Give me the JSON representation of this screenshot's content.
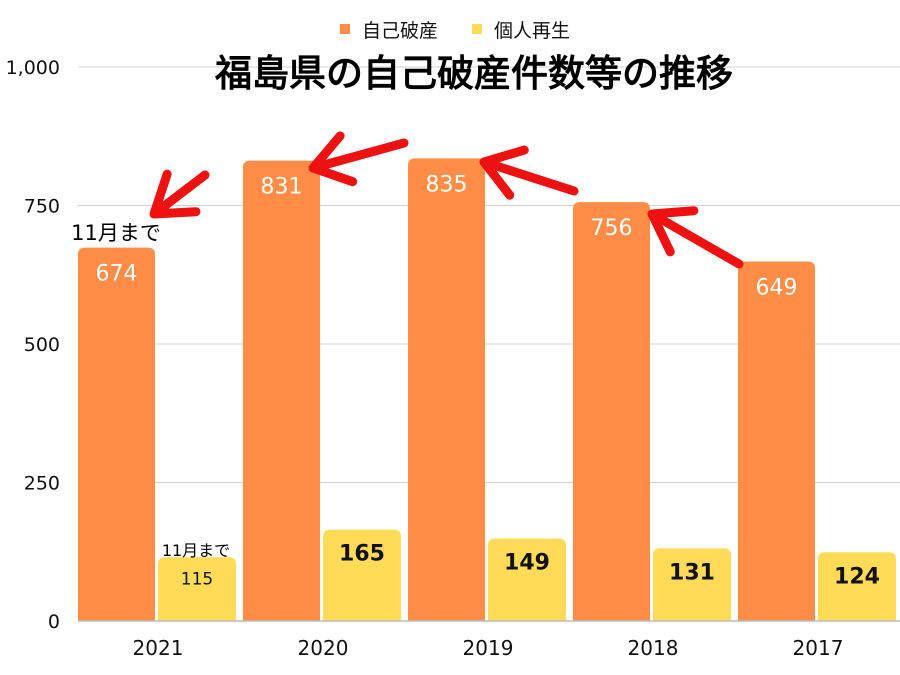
{
  "chart_data": {
    "type": "bar",
    "title": "福島県の自己破産件数等の推移",
    "categories": [
      "2021",
      "2020",
      "2019",
      "2018",
      "2017"
    ],
    "series": [
      {
        "name": "自己破産",
        "values": [
          674,
          831,
          835,
          756,
          649
        ],
        "color": "#FF8D47"
      },
      {
        "name": "個人再生",
        "values": [
          115,
          165,
          149,
          131,
          124
        ],
        "color": "#FFDB58"
      }
    ],
    "ylim": [
      0,
      1000
    ],
    "yticks": [
      0,
      250,
      500,
      750,
      1000
    ],
    "ytick_labels": [
      "0",
      "250",
      "500",
      "750",
      "1,000"
    ],
    "grid": true,
    "legend": "top",
    "annotations": [
      {
        "text": "11月まで",
        "series": 0,
        "category": "2021"
      },
      {
        "text": "11月まで",
        "series": 1,
        "category": "2021"
      }
    ],
    "arrow_color": "#EE1111"
  }
}
